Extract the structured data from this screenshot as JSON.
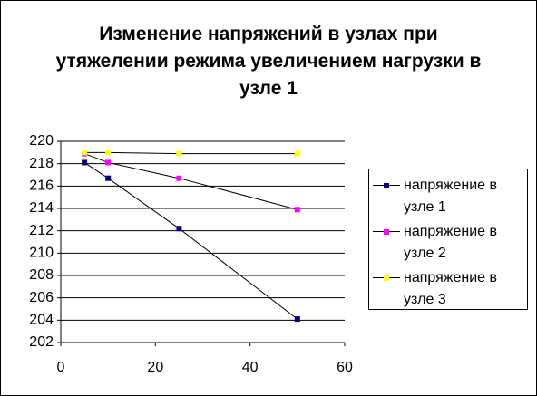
{
  "chart_data": {
    "type": "line",
    "title": "Изменение напряжений  в узлах при утяжелении режима увеличением нагрузки  в узле 1",
    "x": [
      5,
      10,
      25,
      50
    ],
    "series": [
      {
        "name": "напряжение в узле 1",
        "color": "#000080",
        "values": [
          218.1,
          216.7,
          212.2,
          204.1
        ]
      },
      {
        "name": "напряжение  в узле 2",
        "color": "#ff00ff",
        "values": [
          218.9,
          218.1,
          216.7,
          213.9
        ]
      },
      {
        "name": "напряжение  в узле  3",
        "color": "#ffff00",
        "values": [
          219,
          219,
          218.9,
          218.9
        ]
      }
    ],
    "xlim": [
      0,
      60
    ],
    "xticks": [
      0,
      20,
      40,
      60
    ],
    "ylim": [
      202,
      220
    ],
    "yticks": [
      202,
      204,
      206,
      208,
      210,
      212,
      214,
      216,
      218,
      220
    ],
    "grid": true,
    "legend": "right"
  }
}
